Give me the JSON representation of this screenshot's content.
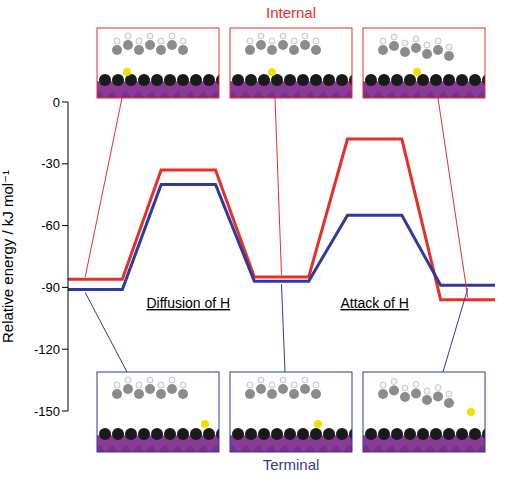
{
  "chart_data": {
    "type": "line",
    "y_label": "Relative energy / kJ mol⁻¹",
    "ylim": [
      -150,
      0
    ],
    "yticks": [
      -150,
      -120,
      -90,
      -60,
      -30,
      0
    ],
    "tick_labels": "y",
    "grid": false,
    "line_style": "step",
    "steps": [
      "Diffusion of H",
      "Attack of H"
    ],
    "series": [
      {
        "name": "Internal",
        "color": "#e5302a",
        "values": [
          -86,
          -33,
          -85,
          -18,
          -96
        ]
      },
      {
        "name": "Terminal",
        "color": "#2e3b9b",
        "values": [
          -91,
          -40,
          -87,
          -55,
          -89
        ]
      }
    ]
  }
}
